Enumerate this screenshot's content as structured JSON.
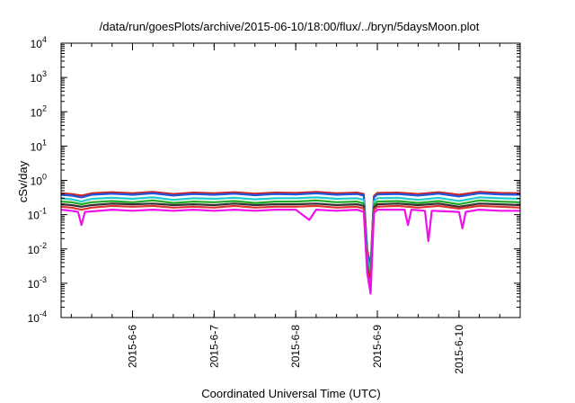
{
  "chart_data": {
    "type": "line",
    "title": "/data/run/goesPlots/archive/2015-06-10/18:00/flux/../bryn/5daysMoon.plot",
    "xlabel": "Coordinated Universal Time (UTC)",
    "ylabel": "cSv/day",
    "yscale": "log",
    "ylim": [
      0.0001,
      10000
    ],
    "xlim": [
      "2015-06-05 03:00",
      "2015-06-10 18:00"
    ],
    "grid": false,
    "legend": "none",
    "x_ticks": [
      {
        "label": "2015-6-6",
        "value": "2015-06-06 00:00"
      },
      {
        "label": "2015-6-7",
        "value": "2015-06-07 00:00"
      },
      {
        "label": "2015-6-8",
        "value": "2015-06-08 00:00"
      },
      {
        "label": "2015-6-9",
        "value": "2015-06-09 00:00"
      },
      {
        "label": "2015-6-10",
        "value": "2015-06-10 00:00"
      }
    ],
    "y_ticks": [
      {
        "base": "10",
        "exp": "-4",
        "value": 0.0001
      },
      {
        "base": "10",
        "exp": "-3",
        "value": 0.001
      },
      {
        "base": "10",
        "exp": "-2",
        "value": 0.01
      },
      {
        "base": "10",
        "exp": "-1",
        "value": 0.1
      },
      {
        "base": "10",
        "exp": "0",
        "value": 1
      },
      {
        "base": "10",
        "exp": "1",
        "value": 10
      },
      {
        "base": "10",
        "exp": "2",
        "value": 100
      },
      {
        "base": "10",
        "exp": "3",
        "value": 1000
      },
      {
        "base": "10",
        "exp": "4",
        "value": 10000
      }
    ],
    "series": [
      {
        "color": "#cc2222",
        "values": [
          [
            "2015-06-05 03:00",
            0.42
          ],
          [
            "2015-06-05 06:00",
            0.4
          ],
          [
            "2015-06-05 09:00",
            0.36
          ],
          [
            "2015-06-05 12:00",
            0.42
          ],
          [
            "2015-06-05 18:00",
            0.45
          ],
          [
            "2015-06-06 00:00",
            0.42
          ],
          [
            "2015-06-06 06:00",
            0.46
          ],
          [
            "2015-06-06 12:00",
            0.4
          ],
          [
            "2015-06-06 18:00",
            0.44
          ],
          [
            "2015-06-07 00:00",
            0.42
          ],
          [
            "2015-06-07 06:00",
            0.45
          ],
          [
            "2015-06-07 12:00",
            0.41
          ],
          [
            "2015-06-07 18:00",
            0.44
          ],
          [
            "2015-06-08 00:00",
            0.43
          ],
          [
            "2015-06-08 06:00",
            0.46
          ],
          [
            "2015-06-08 12:00",
            0.42
          ],
          [
            "2015-06-08 18:00",
            0.44
          ],
          [
            "2015-06-08 20:00",
            0.4
          ],
          [
            "2015-06-08 21:00",
            0.01
          ],
          [
            "2015-06-08 22:00",
            0.003
          ],
          [
            "2015-06-08 23:00",
            0.35
          ],
          [
            "2015-06-09 00:00",
            0.43
          ],
          [
            "2015-06-09 06:00",
            0.44
          ],
          [
            "2015-06-09 12:00",
            0.4
          ],
          [
            "2015-06-09 18:00",
            0.45
          ],
          [
            "2015-06-10 00:00",
            0.38
          ],
          [
            "2015-06-10 06:00",
            0.46
          ],
          [
            "2015-06-10 12:00",
            0.43
          ],
          [
            "2015-06-10 18:00",
            0.42
          ]
        ]
      },
      {
        "color": "#2255dd",
        "values": [
          [
            "2015-06-05 03:00",
            0.38
          ],
          [
            "2015-06-05 06:00",
            0.36
          ],
          [
            "2015-06-05 09:00",
            0.32
          ],
          [
            "2015-06-05 12:00",
            0.38
          ],
          [
            "2015-06-05 18:00",
            0.41
          ],
          [
            "2015-06-06 00:00",
            0.38
          ],
          [
            "2015-06-06 06:00",
            0.42
          ],
          [
            "2015-06-06 12:00",
            0.36
          ],
          [
            "2015-06-06 18:00",
            0.4
          ],
          [
            "2015-06-07 00:00",
            0.38
          ],
          [
            "2015-06-07 06:00",
            0.41
          ],
          [
            "2015-06-07 12:00",
            0.37
          ],
          [
            "2015-06-07 18:00",
            0.4
          ],
          [
            "2015-06-08 00:00",
            0.39
          ],
          [
            "2015-06-08 06:00",
            0.42
          ],
          [
            "2015-06-08 12:00",
            0.38
          ],
          [
            "2015-06-08 18:00",
            0.4
          ],
          [
            "2015-06-08 20:00",
            0.36
          ],
          [
            "2015-06-08 21:00",
            0.008
          ],
          [
            "2015-06-08 22:00",
            0.0025
          ],
          [
            "2015-06-08 23:00",
            0.32
          ],
          [
            "2015-06-09 00:00",
            0.39
          ],
          [
            "2015-06-09 06:00",
            0.4
          ],
          [
            "2015-06-09 12:00",
            0.36
          ],
          [
            "2015-06-09 18:00",
            0.41
          ],
          [
            "2015-06-10 00:00",
            0.34
          ],
          [
            "2015-06-10 06:00",
            0.42
          ],
          [
            "2015-06-10 12:00",
            0.39
          ],
          [
            "2015-06-10 18:00",
            0.38
          ]
        ]
      },
      {
        "color": "#22cccc",
        "values": [
          [
            "2015-06-05 03:00",
            0.3
          ],
          [
            "2015-06-05 06:00",
            0.28
          ],
          [
            "2015-06-05 09:00",
            0.24
          ],
          [
            "2015-06-05 12:00",
            0.29
          ],
          [
            "2015-06-05 18:00",
            0.31
          ],
          [
            "2015-06-06 00:00",
            0.29
          ],
          [
            "2015-06-06 06:00",
            0.32
          ],
          [
            "2015-06-06 12:00",
            0.27
          ],
          [
            "2015-06-06 18:00",
            0.3
          ],
          [
            "2015-06-07 00:00",
            0.29
          ],
          [
            "2015-06-07 06:00",
            0.31
          ],
          [
            "2015-06-07 12:00",
            0.28
          ],
          [
            "2015-06-07 18:00",
            0.3
          ],
          [
            "2015-06-08 00:00",
            0.3
          ],
          [
            "2015-06-08 06:00",
            0.32
          ],
          [
            "2015-06-08 12:00",
            0.29
          ],
          [
            "2015-06-08 18:00",
            0.3
          ],
          [
            "2015-06-08 20:00",
            0.27
          ],
          [
            "2015-06-08 21:00",
            0.006
          ],
          [
            "2015-06-08 22:00",
            0.002
          ],
          [
            "2015-06-08 23:00",
            0.24
          ],
          [
            "2015-06-09 00:00",
            0.3
          ],
          [
            "2015-06-09 06:00",
            0.31
          ],
          [
            "2015-06-09 12:00",
            0.27
          ],
          [
            "2015-06-09 18:00",
            0.31
          ],
          [
            "2015-06-10 00:00",
            0.25
          ],
          [
            "2015-06-10 06:00",
            0.32
          ],
          [
            "2015-06-10 12:00",
            0.3
          ],
          [
            "2015-06-10 18:00",
            0.29
          ]
        ]
      },
      {
        "color": "#22aa22",
        "values": [
          [
            "2015-06-05 03:00",
            0.24
          ],
          [
            "2015-06-05 06:00",
            0.23
          ],
          [
            "2015-06-05 09:00",
            0.2
          ],
          [
            "2015-06-05 12:00",
            0.23
          ],
          [
            "2015-06-05 18:00",
            0.25
          ],
          [
            "2015-06-06 00:00",
            0.23
          ],
          [
            "2015-06-06 06:00",
            0.26
          ],
          [
            "2015-06-06 12:00",
            0.22
          ],
          [
            "2015-06-06 18:00",
            0.24
          ],
          [
            "2015-06-07 00:00",
            0.23
          ],
          [
            "2015-06-07 06:00",
            0.25
          ],
          [
            "2015-06-07 12:00",
            0.22
          ],
          [
            "2015-06-07 18:00",
            0.24
          ],
          [
            "2015-06-08 00:00",
            0.24
          ],
          [
            "2015-06-08 06:00",
            0.26
          ],
          [
            "2015-06-08 12:00",
            0.23
          ],
          [
            "2015-06-08 18:00",
            0.24
          ],
          [
            "2015-06-08 20:00",
            0.21
          ],
          [
            "2015-06-08 21:00",
            0.004
          ],
          [
            "2015-06-08 22:00",
            0.0012
          ],
          [
            "2015-06-08 23:00",
            0.19
          ],
          [
            "2015-06-09 00:00",
            0.24
          ],
          [
            "2015-06-09 06:00",
            0.25
          ],
          [
            "2015-06-09 12:00",
            0.22
          ],
          [
            "2015-06-09 18:00",
            0.25
          ],
          [
            "2015-06-10 00:00",
            0.2
          ],
          [
            "2015-06-10 06:00",
            0.26
          ],
          [
            "2015-06-10 12:00",
            0.24
          ],
          [
            "2015-06-10 18:00",
            0.23
          ]
        ]
      },
      {
        "color": "#333333",
        "values": [
          [
            "2015-06-05 03:00",
            0.2
          ],
          [
            "2015-06-05 06:00",
            0.19
          ],
          [
            "2015-06-05 09:00",
            0.17
          ],
          [
            "2015-06-05 12:00",
            0.19
          ],
          [
            "2015-06-05 18:00",
            0.21
          ],
          [
            "2015-06-06 00:00",
            0.2
          ],
          [
            "2015-06-06 06:00",
            0.21
          ],
          [
            "2015-06-06 12:00",
            0.19
          ],
          [
            "2015-06-06 18:00",
            0.2
          ],
          [
            "2015-06-07 00:00",
            0.19
          ],
          [
            "2015-06-07 06:00",
            0.21
          ],
          [
            "2015-06-07 12:00",
            0.19
          ],
          [
            "2015-06-07 18:00",
            0.2
          ],
          [
            "2015-06-08 00:00",
            0.2
          ],
          [
            "2015-06-08 06:00",
            0.21
          ],
          [
            "2015-06-08 12:00",
            0.19
          ],
          [
            "2015-06-08 18:00",
            0.2
          ],
          [
            "2015-06-08 20:00",
            0.18
          ],
          [
            "2015-06-08 21:00",
            0.003
          ],
          [
            "2015-06-08 22:00",
            0.001
          ],
          [
            "2015-06-08 23:00",
            0.16
          ],
          [
            "2015-06-09 00:00",
            0.2
          ],
          [
            "2015-06-09 06:00",
            0.21
          ],
          [
            "2015-06-09 12:00",
            0.19
          ],
          [
            "2015-06-09 18:00",
            0.21
          ],
          [
            "2015-06-10 00:00",
            0.17
          ],
          [
            "2015-06-10 06:00",
            0.21
          ],
          [
            "2015-06-10 12:00",
            0.2
          ],
          [
            "2015-06-10 18:00",
            0.19
          ]
        ]
      },
      {
        "color": "#dd3333",
        "values": [
          [
            "2015-06-05 03:00",
            0.17
          ],
          [
            "2015-06-05 06:00",
            0.16
          ],
          [
            "2015-06-05 09:00",
            0.14
          ],
          [
            "2015-06-05 12:00",
            0.16
          ],
          [
            "2015-06-05 18:00",
            0.18
          ],
          [
            "2015-06-06 00:00",
            0.17
          ],
          [
            "2015-06-06 06:00",
            0.18
          ],
          [
            "2015-06-06 12:00",
            0.16
          ],
          [
            "2015-06-06 18:00",
            0.17
          ],
          [
            "2015-06-07 00:00",
            0.16
          ],
          [
            "2015-06-07 06:00",
            0.18
          ],
          [
            "2015-06-07 12:00",
            0.16
          ],
          [
            "2015-06-07 18:00",
            0.17
          ],
          [
            "2015-06-08 00:00",
            0.17
          ],
          [
            "2015-06-08 06:00",
            0.18
          ],
          [
            "2015-06-08 12:00",
            0.16
          ],
          [
            "2015-06-08 18:00",
            0.17
          ],
          [
            "2015-06-08 20:00",
            0.15
          ],
          [
            "2015-06-08 21:00",
            0.0025
          ],
          [
            "2015-06-08 22:00",
            0.0008
          ],
          [
            "2015-06-08 23:00",
            0.14
          ],
          [
            "2015-06-09 00:00",
            0.17
          ],
          [
            "2015-06-09 06:00",
            0.18
          ],
          [
            "2015-06-09 12:00",
            0.16
          ],
          [
            "2015-06-09 18:00",
            0.18
          ],
          [
            "2015-06-10 00:00",
            0.15
          ],
          [
            "2015-06-10 06:00",
            0.18
          ],
          [
            "2015-06-10 12:00",
            0.17
          ],
          [
            "2015-06-10 18:00",
            0.16
          ]
        ]
      },
      {
        "color": "#ee11ee",
        "values": [
          [
            "2015-06-05 03:00",
            0.14
          ],
          [
            "2015-06-05 06:00",
            0.13
          ],
          [
            "2015-06-05 08:00",
            0.12
          ],
          [
            "2015-06-05 09:00",
            0.05
          ],
          [
            "2015-06-05 10:00",
            0.12
          ],
          [
            "2015-06-05 18:00",
            0.14
          ],
          [
            "2015-06-06 00:00",
            0.13
          ],
          [
            "2015-06-06 06:00",
            0.14
          ],
          [
            "2015-06-06 12:00",
            0.13
          ],
          [
            "2015-06-06 18:00",
            0.14
          ],
          [
            "2015-06-07 00:00",
            0.13
          ],
          [
            "2015-06-07 06:00",
            0.14
          ],
          [
            "2015-06-07 12:00",
            0.13
          ],
          [
            "2015-06-07 18:00",
            0.14
          ],
          [
            "2015-06-08 00:00",
            0.14
          ],
          [
            "2015-06-08 04:00",
            0.07
          ],
          [
            "2015-06-08 06:00",
            0.14
          ],
          [
            "2015-06-08 12:00",
            0.13
          ],
          [
            "2015-06-08 18:00",
            0.14
          ],
          [
            "2015-06-08 20:00",
            0.12
          ],
          [
            "2015-06-08 21:00",
            0.002
          ],
          [
            "2015-06-08 22:00",
            0.0005
          ],
          [
            "2015-06-08 23:00",
            0.11
          ],
          [
            "2015-06-09 00:00",
            0.14
          ],
          [
            "2015-06-09 08:00",
            0.14
          ],
          [
            "2015-06-09 09:00",
            0.05
          ],
          [
            "2015-06-09 10:00",
            0.14
          ],
          [
            "2015-06-09 14:00",
            0.13
          ],
          [
            "2015-06-09 15:00",
            0.017
          ],
          [
            "2015-06-09 16:00",
            0.13
          ],
          [
            "2015-06-10 00:00",
            0.12
          ],
          [
            "2015-06-10 01:00",
            0.04
          ],
          [
            "2015-06-10 02:00",
            0.12
          ],
          [
            "2015-06-10 06:00",
            0.14
          ],
          [
            "2015-06-10 12:00",
            0.13
          ],
          [
            "2015-06-10 18:00",
            0.13
          ]
        ]
      }
    ]
  }
}
